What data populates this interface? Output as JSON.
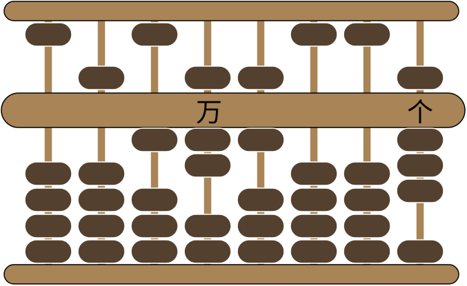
{
  "abacus": {
    "rods": [
      {
        "upper_lowered": 0,
        "lower_raised": 0
      },
      {
        "upper_lowered": 1,
        "lower_raised": 0
      },
      {
        "upper_lowered": 0,
        "lower_raised": 1
      },
      {
        "upper_lowered": 1,
        "lower_raised": 2
      },
      {
        "upper_lowered": 1,
        "lower_raised": 1
      },
      {
        "upper_lowered": 0,
        "lower_raised": 0
      },
      {
        "upper_lowered": 0,
        "lower_raised": 0
      },
      {
        "upper_lowered": 1,
        "lower_raised": 3
      }
    ],
    "labels": [
      {
        "text": "万",
        "rod": 3
      },
      {
        "text": "个",
        "rod": 7
      }
    ],
    "colors": {
      "frame": "#a98456",
      "rod": "#a98456",
      "bead": "#54402e",
      "outline": "#000000"
    }
  }
}
